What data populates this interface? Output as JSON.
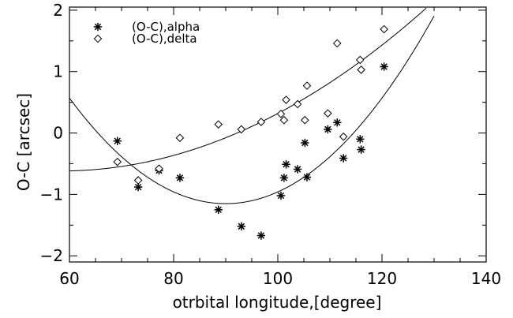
{
  "chart_data": {
    "type": "scatter",
    "title": "",
    "xlabel": "otrbital longitude,[degree]",
    "ylabel": "O-C [arcsec]",
    "xlim": [
      60,
      140
    ],
    "ylim": [
      -2.1,
      2.05
    ],
    "xticks": [
      60,
      80,
      100,
      120,
      140
    ],
    "yticks": [
      -2,
      -1,
      0,
      1,
      2
    ],
    "grid": false,
    "legend_position": "top-left",
    "series": [
      {
        "name": "(O-C),alpha",
        "marker": "asterisk",
        "x": [
          69.2,
          73.2,
          77.2,
          81.2,
          88.6,
          93.0,
          96.8,
          100.6,
          101.2,
          101.6,
          103.8,
          105.2,
          105.6,
          109.6,
          111.4,
          112.6,
          115.8,
          116.0,
          120.4
        ],
        "y": [
          -0.13,
          -0.88,
          -0.61,
          -0.73,
          -1.25,
          -1.52,
          -1.67,
          -1.02,
          -0.73,
          -0.51,
          -0.59,
          -0.16,
          -0.72,
          0.06,
          0.17,
          -0.41,
          -0.1,
          -0.27,
          1.08
        ]
      },
      {
        "name": "(O-C),delta",
        "marker": "diamond",
        "x": [
          69.2,
          73.2,
          77.2,
          81.2,
          88.6,
          93.0,
          96.8,
          100.6,
          101.2,
          101.6,
          103.8,
          105.2,
          105.6,
          109.6,
          111.4,
          112.6,
          115.8,
          116.0,
          120.4
        ],
        "y": [
          -0.47,
          -0.77,
          -0.58,
          -0.08,
          0.14,
          0.06,
          0.18,
          0.31,
          0.21,
          0.54,
          0.47,
          0.21,
          0.77,
          0.32,
          1.46,
          -0.06,
          1.19,
          1.03,
          1.69
        ]
      }
    ],
    "fits": [
      {
        "type": "quadratic",
        "for_series": "(O-C),delta",
        "coefficients": [
          -0.617,
          0.00185,
          0.000538
        ],
        "about_x": 60,
        "x_range": [
          60,
          128.5
        ]
      },
      {
        "type": "quadratic",
        "for_series": "(O-C),alpha",
        "coefficients": [
          -1.15,
          0.0,
          0.00191
        ],
        "about_x": 90,
        "x_range": [
          60,
          130
        ]
      }
    ]
  }
}
